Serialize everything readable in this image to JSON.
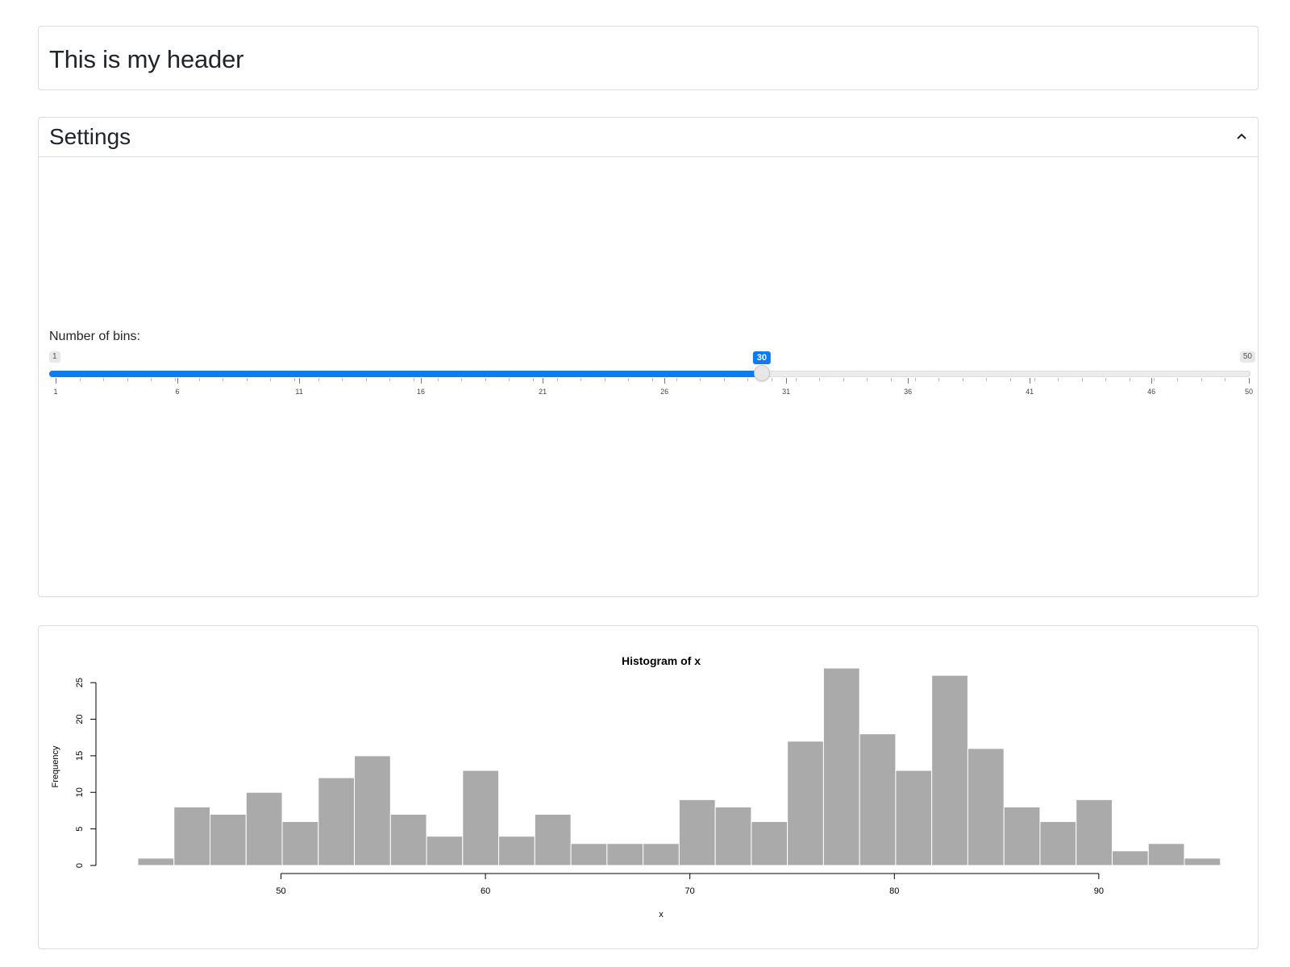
{
  "header": {
    "title": "This is my header"
  },
  "settings": {
    "title": "Settings",
    "collapse_icon": "chevron-up-icon",
    "slider": {
      "label": "Number of bins:",
      "min": 1,
      "max": 50,
      "value": 30,
      "min_label": "1",
      "max_label": "50",
      "value_label": "30",
      "tick_labels": [
        "1",
        "6",
        "11",
        "16",
        "21",
        "26",
        "31",
        "36",
        "41",
        "46",
        "50"
      ],
      "accent": "#0d7cf2"
    }
  },
  "chart_data": {
    "type": "bar",
    "title": "Histogram of x",
    "xlabel": "x",
    "ylabel": "Frequency",
    "bin_start": 43,
    "bin_width": 1.765,
    "values": [
      1,
      8,
      7,
      10,
      6,
      12,
      15,
      7,
      4,
      13,
      4,
      7,
      3,
      3,
      3,
      9,
      8,
      6,
      17,
      27,
      18,
      13,
      26,
      16,
      8,
      6,
      9,
      2,
      3,
      1
    ],
    "xticks": [
      50,
      60,
      70,
      80,
      90
    ],
    "yticks": [
      0,
      5,
      10,
      15,
      20,
      25
    ],
    "xlim": [
      43,
      96
    ],
    "ylim": [
      0,
      27
    ],
    "bar_color": "#aaaaaa",
    "grid": false,
    "legend": "none"
  }
}
